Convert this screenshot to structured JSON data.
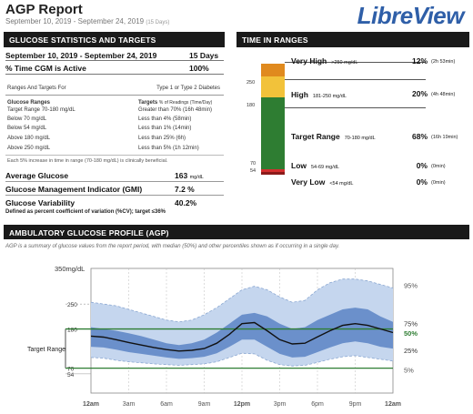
{
  "report": {
    "title": "AGP Report",
    "date_range": "September 10, 2019 - September 24, 2019",
    "days": "(15 Days)",
    "brand": "LibreView"
  },
  "stats": {
    "header": "GLUCOSE STATISTICS AND TARGETS",
    "range_label": "September 10, 2019 - September 24, 2019",
    "range_value": "15 Days",
    "active_label": "% Time CGM is Active",
    "active_value": "100%"
  },
  "targets": {
    "heading_left": "Ranges And Targets For",
    "heading_right": "Type 1 or Type 2 Diabetes",
    "col1": "Glucose Ranges",
    "col2": "Targets",
    "col2_sub": "% of Readings (Time/Day)",
    "rows": [
      {
        "range": "Target Range 70-180 mg/dL",
        "target": "Greater than 70% (16h 48min)"
      },
      {
        "range": "Below 70 mg/dL",
        "target": "Less than 4% (58min)"
      },
      {
        "range": "Below 54 mg/dL",
        "target": "Less than 1% (14min)"
      },
      {
        "range": "Above 180 mg/dL",
        "target": "Less than 25% (6h)"
      },
      {
        "range": "Above 250 mg/dL",
        "target": "Less than 5% (1h 12min)"
      }
    ],
    "footnote": "Each 5% increase in time in range (70-180 mg/dL) is clinically beneficial."
  },
  "measures": {
    "avg_label": "Average Glucose",
    "avg_value": "163",
    "avg_unit": "mg/dL",
    "gmi_label": "Glucose Management Indicator (GMI)",
    "gmi_value": "7.2 %",
    "var_label": "Glucose Variability",
    "var_value": "40.2%",
    "var_def": "Defined as percent coefficient of variation (%CV); target ≤36%"
  },
  "tir": {
    "header": "TIME IN RANGES",
    "ticks": [
      "250",
      "180",
      "70",
      "54"
    ],
    "very_high": {
      "label": "Very High",
      "range": ">250 mg/dL",
      "pct": "12%",
      "dur": "(2h 53min)",
      "value": 12
    },
    "high": {
      "label": "High",
      "range": "181-250 mg/dL",
      "pct": "20%",
      "dur": "(4h 48min)",
      "value": 20
    },
    "target": {
      "label": "Target Range",
      "range": "70-180 mg/dL",
      "pct": "68%",
      "dur": "(16h 19min)",
      "value": 68
    },
    "low": {
      "label": "Low",
      "range": "54-69 mg/dL",
      "pct": "0%",
      "dur": "(0min)",
      "value": 0
    },
    "very_low": {
      "label": "Very Low",
      "range": "<54 mg/dL",
      "pct": "0%",
      "dur": "(0min)",
      "value": 0
    },
    "colors": {
      "very_high": "#e08a1e",
      "high": "#f2c23a",
      "target": "#2e7d32",
      "low": "#d32f2f",
      "very_low": "#8b1a1a"
    }
  },
  "agp": {
    "header": "AMBULATORY GLUCOSE PROFILE (AGP)",
    "description": "AGP is a summary of glucose values from the report period, with median (50%) and other percentiles shown as if occurring in a single day.",
    "target_range_label": "Target Range"
  },
  "chart_data": {
    "type": "area",
    "ylabel": "mg/dL",
    "y_ticks": [
      54,
      70,
      180,
      250,
      350
    ],
    "ylim": [
      0,
      350
    ],
    "x_ticks": [
      "12am",
      "3am",
      "6am",
      "9am",
      "12pm",
      "3pm",
      "6pm",
      "9pm",
      "12am"
    ],
    "target_range": [
      70,
      180
    ],
    "x": [
      0,
      1,
      2,
      3,
      4,
      5,
      6,
      7,
      8,
      9,
      10,
      11,
      12,
      13,
      14,
      15,
      16,
      17,
      18,
      19,
      20,
      21,
      22,
      23,
      24
    ],
    "series": [
      {
        "name": "95%",
        "values": [
          255,
          250,
          245,
          235,
          225,
          215,
          205,
          200,
          205,
          220,
          240,
          265,
          290,
          300,
          290,
          270,
          255,
          260,
          290,
          310,
          320,
          320,
          315,
          305,
          295
        ]
      },
      {
        "name": "75%",
        "values": [
          185,
          180,
          175,
          168,
          160,
          150,
          140,
          135,
          140,
          150,
          170,
          195,
          220,
          225,
          215,
          195,
          180,
          185,
          205,
          220,
          235,
          240,
          235,
          215,
          200
        ]
      },
      {
        "name": "50%",
        "values": [
          160,
          157,
          150,
          142,
          135,
          128,
          122,
          118,
          120,
          125,
          140,
          165,
          195,
          198,
          175,
          150,
          138,
          140,
          158,
          175,
          190,
          195,
          190,
          180,
          170
        ]
      },
      {
        "name": "25%",
        "values": [
          130,
          128,
          122,
          115,
          110,
          105,
          100,
          96,
          98,
          102,
          112,
          130,
          150,
          150,
          130,
          110,
          100,
          102,
          115,
          128,
          140,
          145,
          140,
          130,
          125
        ]
      },
      {
        "name": "5%",
        "values": [
          100,
          98,
          92,
          88,
          85,
          82,
          80,
          78,
          80,
          82,
          88,
          100,
          112,
          110,
          92,
          80,
          76,
          78,
          86,
          95,
          102,
          105,
          100,
          95,
          90
        ]
      }
    ]
  }
}
